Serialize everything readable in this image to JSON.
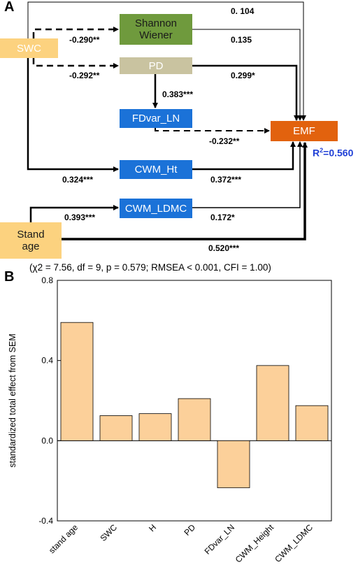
{
  "panel_a": {
    "label": "A",
    "nodes": {
      "swc": "SWC",
      "shannon": "Shannon Wiener",
      "pd": "PD",
      "fdvar": "FDvar_LN",
      "emf": "EMF",
      "cwm_ht": "CWM_Ht",
      "cwm_ldmc": "CWM_LDMC",
      "stand_age": "Stand age"
    },
    "paths": {
      "swc_emf": "0. 104",
      "swc_shannon": "-0.290**",
      "shannon_emf": "0.135",
      "swc_pd": "-0.292**",
      "pd_emf": "0.299*",
      "pd_fdvar": "0.383***",
      "fdvar_emf": "-0.232**",
      "swc_cwmht": "0.324***",
      "cwmht_emf": "0.372***",
      "age_ldmc": "0.393***",
      "ldmc_emf": "0.172*",
      "age_emf": "0.520***"
    },
    "r2_prefix": "R",
    "r2_sup": "2",
    "r2_value": "=0.560",
    "fit_stats": "(χ2 = 7.56, df = 9, p = 0.579; RMSEA < 0.001, CFI = 1.00)",
    "colors": {
      "swc": "#fcd27f",
      "shannon": "#6f9a3d",
      "pd": "#c9c3a0",
      "fdvar": "#1b72d8",
      "emf": "#e2620e",
      "cwm": "#1b72d8",
      "stand_age": "#fcd27f",
      "r2": "#1f3fd6"
    }
  },
  "panel_b": {
    "label": "B"
  },
  "chart_data": {
    "type": "bar",
    "categories": [
      "stand age",
      "SWC",
      "H",
      "PD",
      "FDvar_LN",
      "CWM_Height",
      "CWM_LDMC"
    ],
    "values": [
      0.59,
      0.125,
      0.135,
      0.21,
      -0.235,
      0.375,
      0.175
    ],
    "ylabel": "standardized total effect from SEM",
    "xlabel": "",
    "title": "",
    "ylim": [
      -0.4,
      0.8
    ],
    "yticks": [
      -0.4,
      0.0,
      0.4,
      0.8
    ],
    "ytick_labels": [
      "-0.4",
      "0.0",
      "0.4",
      "0.8"
    ],
    "bar_color": "#fcd09a",
    "grid": false,
    "legend": "none"
  }
}
